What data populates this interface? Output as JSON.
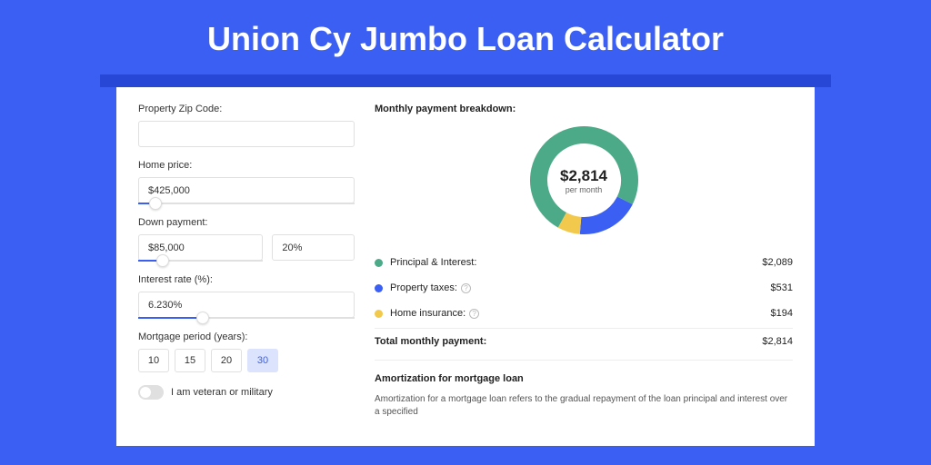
{
  "title": "Union Cy Jumbo Loan Calculator",
  "colors": {
    "page_bg": "#3b5ff3",
    "header_border": "#2747d6",
    "card_bg": "#ffffff",
    "accent": "#3b5ff3",
    "green": "#4daa88",
    "blue": "#3b5ff3",
    "yellow": "#f2c94c"
  },
  "form": {
    "zip_label": "Property Zip Code:",
    "zip_value": "",
    "home_price_label": "Home price:",
    "home_price_value": "$425,000",
    "home_price_slider_pct": 8,
    "down_payment_label": "Down payment:",
    "down_payment_amount": "$85,000",
    "down_payment_pct": "20%",
    "down_payment_slider_pct": 20,
    "interest_label": "Interest rate (%):",
    "interest_value": "6.230%",
    "interest_slider_pct": 30,
    "period_label": "Mortgage period (years):",
    "period_options": [
      "10",
      "15",
      "20",
      "30"
    ],
    "period_selected": "30",
    "veteran_label": "I am veteran or military",
    "veteran_on": false
  },
  "breakdown": {
    "title": "Monthly payment breakdown:",
    "center_amount": "$2,814",
    "center_sub": "per month",
    "donut": {
      "thickness": 19,
      "radius": 50,
      "segments": [
        {
          "color": "#4daa88",
          "pct": 74.2,
          "label": "Principal & Interest:",
          "value": "$2,089"
        },
        {
          "color": "#3b5ff3",
          "pct": 18.9,
          "label": "Property taxes:",
          "value": "$531",
          "help": true
        },
        {
          "color": "#f2c94c",
          "pct": 6.9,
          "label": "Home insurance:",
          "value": "$194",
          "help": true
        }
      ]
    },
    "total_label": "Total monthly payment:",
    "total_value": "$2,814"
  },
  "amortization": {
    "title": "Amortization for mortgage loan",
    "text": "Amortization for a mortgage loan refers to the gradual repayment of the loan principal and interest over a specified"
  }
}
